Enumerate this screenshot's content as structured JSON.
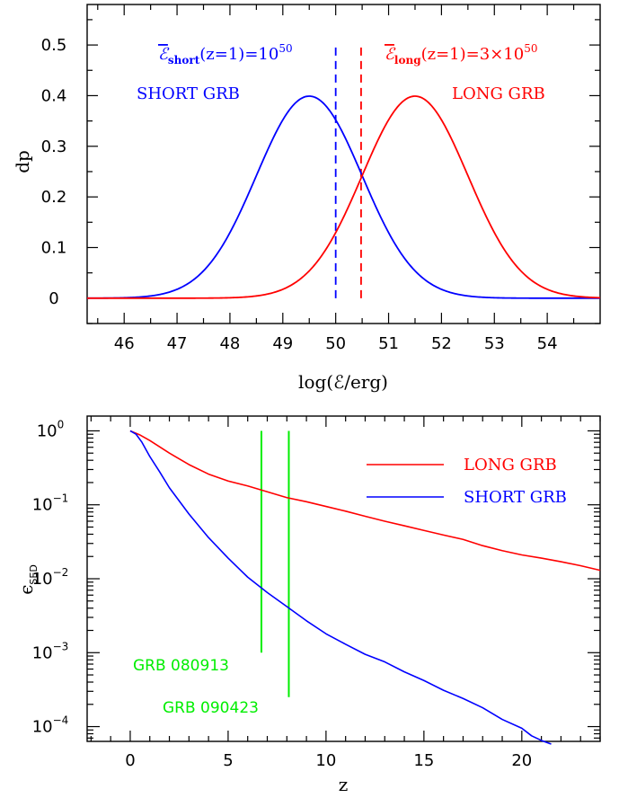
{
  "chart_data": [
    {
      "type": "line",
      "xlabel": "log(ℰ/erg)",
      "ylabel": "dp",
      "xlim": [
        45.3,
        55.0
      ],
      "ylim": [
        -0.05,
        0.58
      ],
      "x_ticks": [
        "46",
        "47",
        "48",
        "49",
        "50",
        "51",
        "52",
        "53",
        "54"
      ],
      "y_ticks": [
        "0",
        "0.1",
        "0.2",
        "0.3",
        "0.4",
        "0.5"
      ],
      "series": [
        {
          "name": "SHORT GRB",
          "color": "#0000ff",
          "gaussian": {
            "mean": 49.5,
            "sigma": 1.0,
            "peak": 0.399
          }
        },
        {
          "name": "LONG GRB",
          "color": "#ff0000",
          "gaussian": {
            "mean": 51.5,
            "sigma": 1.0,
            "peak": 0.399
          }
        }
      ],
      "vlines": [
        {
          "x": 50.0,
          "y0": 0.0,
          "y1": 0.5,
          "color": "#0000ff",
          "style": "dashed"
        },
        {
          "x": 50.48,
          "y0": 0.0,
          "y1": 0.5,
          "color": "#ff0000",
          "style": "dashed"
        }
      ],
      "annotations": {
        "short_energy": {
          "symbol": "ℰ",
          "sub": "short",
          "text": "(z=1)=10",
          "sup": "50",
          "color": "#0000ff"
        },
        "long_energy": {
          "symbol": "ℰ",
          "sub": "long",
          "text": "(z=1)=3×10",
          "sup": "50",
          "color": "#ff0000"
        },
        "short_label": {
          "text": "SHORT GRB",
          "color": "#0000ff"
        },
        "long_label": {
          "text": "LONG GRB",
          "color": "#ff0000"
        }
      },
      "grid": false
    },
    {
      "type": "line",
      "xlabel": "z",
      "ylabel": {
        "base": "ϵ",
        "sub": "SED"
      },
      "xlim": [
        -2.2,
        24.0
      ],
      "ylim_log10": [
        -4.2,
        0.2
      ],
      "y_scale": "log",
      "x_ticks": [
        "0",
        "5",
        "10",
        "15",
        "20"
      ],
      "y_ticks": [
        {
          "base": "10",
          "exp": "0"
        },
        {
          "base": "10",
          "exp": "−1"
        },
        {
          "base": "10",
          "exp": "−2"
        },
        {
          "base": "10",
          "exp": "−3"
        },
        {
          "base": "10",
          "exp": "−4"
        }
      ],
      "series": [
        {
          "name": "LONG GRB",
          "color": "#ff0000",
          "points": [
            [
              0,
              1.0
            ],
            [
              0.5,
              0.88
            ],
            [
              1,
              0.74
            ],
            [
              2,
              0.5
            ],
            [
              3,
              0.35
            ],
            [
              4,
              0.26
            ],
            [
              5,
              0.21
            ],
            [
              6,
              0.18
            ],
            [
              7,
              0.15
            ],
            [
              8,
              0.125
            ],
            [
              9,
              0.11
            ],
            [
              10,
              0.095
            ],
            [
              11,
              0.082
            ],
            [
              12,
              0.07
            ],
            [
              13,
              0.06
            ],
            [
              14,
              0.052
            ],
            [
              15,
              0.045
            ],
            [
              16,
              0.039
            ],
            [
              17,
              0.034
            ],
            [
              18,
              0.028
            ],
            [
              19,
              0.024
            ],
            [
              20,
              0.021
            ],
            [
              21,
              0.019
            ],
            [
              22,
              0.017
            ],
            [
              23,
              0.015
            ],
            [
              24,
              0.013
            ]
          ]
        },
        {
          "name": "SHORT GRB",
          "color": "#0000ff",
          "points": [
            [
              0,
              1.0
            ],
            [
              0.3,
              0.9
            ],
            [
              0.6,
              0.7
            ],
            [
              1,
              0.45
            ],
            [
              1.5,
              0.28
            ],
            [
              2,
              0.17
            ],
            [
              3,
              0.075
            ],
            [
              4,
              0.036
            ],
            [
              5,
              0.019
            ],
            [
              6,
              0.0105
            ],
            [
              7,
              0.0065
            ],
            [
              8,
              0.0042
            ],
            [
              9,
              0.0027
            ],
            [
              10,
              0.0018
            ],
            [
              11,
              0.0013
            ],
            [
              12,
              0.00095
            ],
            [
              13,
              0.00075
            ],
            [
              14,
              0.00055
            ],
            [
              15,
              0.00042
            ],
            [
              16,
              0.00031
            ],
            [
              17,
              0.00024
            ],
            [
              18,
              0.00018
            ],
            [
              19,
              0.000125
            ],
            [
              20,
              9.5e-05
            ],
            [
              20.5,
              7.5e-05
            ],
            [
              21,
              6.5e-05
            ],
            [
              21.5,
              5.8e-05
            ]
          ]
        }
      ],
      "vlines": [
        {
          "x": 6.7,
          "y0": 0.001,
          "y1": 1.0,
          "color": "#00ee00",
          "label": "GRB 080913"
        },
        {
          "x": 8.1,
          "y0": 0.00025,
          "y1": 1.0,
          "color": "#00ee00",
          "label": "GRB 090423"
        }
      ],
      "legend": {
        "placement": "top-right",
        "entries": [
          {
            "label": "LONG GRB",
            "color": "#ff0000"
          },
          {
            "label": "SHORT GRB",
            "color": "#0000ff"
          }
        ]
      },
      "grid": false
    }
  ]
}
